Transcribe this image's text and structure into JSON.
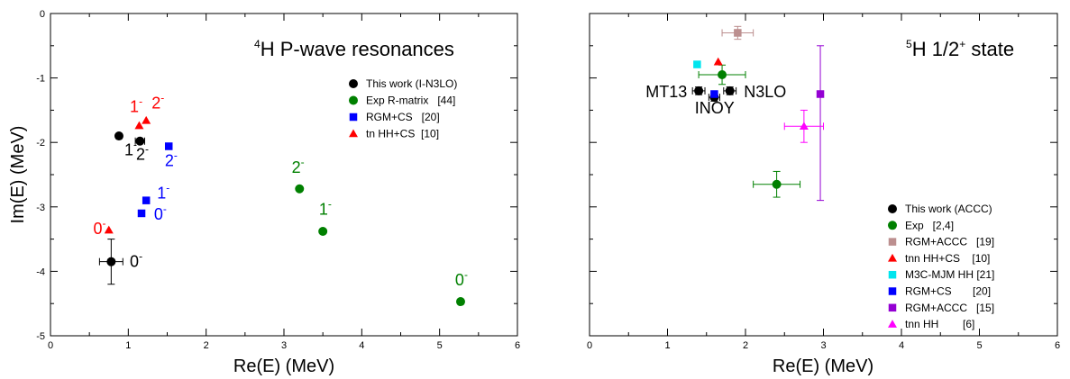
{
  "chart_data": [
    {
      "type": "scatter",
      "title_sup": "4",
      "title_main": "H P-wave resonances",
      "xlabel": "Re(E)  (MeV)",
      "ylabel": "Im(E)  (MeV)",
      "xlim": [
        0,
        6
      ],
      "ylim": [
        -5,
        0
      ],
      "xticks": [
        "0",
        "1",
        "2",
        "3",
        "4",
        "5",
        "6"
      ],
      "yticks": [
        "0",
        "-1",
        "-2",
        "-3",
        "-4",
        "-5"
      ],
      "grid": false,
      "legend_position": "top-right",
      "series": [
        {
          "name": "This work (I-N3LO)",
          "color": "#000000",
          "marker": "circle",
          "points": [
            {
              "x": 0.78,
              "y": -3.85,
              "xerr": 0.15,
              "yerr": 0.35
            },
            {
              "x": 0.88,
              "y": -1.9
            },
            {
              "x": 1.15,
              "y": -1.98,
              "xerr": 0.06
            }
          ]
        },
        {
          "name": "Exp R-matrix   [44]",
          "color": "#008000",
          "marker": "circle",
          "points": [
            {
              "x": 3.2,
              "y": -2.72
            },
            {
              "x": 3.5,
              "y": -3.38
            },
            {
              "x": 5.27,
              "y": -4.47
            }
          ]
        },
        {
          "name": "RGM+CS   [20]",
          "color": "#0000ff",
          "marker": "square",
          "points": [
            {
              "x": 1.52,
              "y": -2.06
            },
            {
              "x": 1.23,
              "y": -2.9
            },
            {
              "x": 1.17,
              "y": -3.1
            }
          ]
        },
        {
          "name": "tn HH+CS  [10]",
          "color": "#ff0000",
          "marker": "triangle",
          "points": [
            {
              "x": 1.14,
              "y": -1.74
            },
            {
              "x": 1.23,
              "y": -1.66
            },
            {
              "x": 0.75,
              "y": -3.36
            }
          ]
        }
      ],
      "annotations": [
        {
          "base": "1",
          "sup": "-",
          "color": "#000000",
          "x": 0.95,
          "y": -2.2
        },
        {
          "base": "2",
          "sup": "-",
          "color": "#000000",
          "x": 1.1,
          "y": -2.27
        },
        {
          "base": "0",
          "sup": "-",
          "color": "#000000",
          "x": 1.02,
          "y": -3.93
        },
        {
          "base": "1",
          "sup": "-",
          "color": "#ff0000",
          "x": 1.02,
          "y": -1.53
        },
        {
          "base": "2",
          "sup": "-",
          "color": "#ff0000",
          "x": 1.3,
          "y": -1.47
        },
        {
          "base": "0",
          "sup": "-",
          "color": "#ff0000",
          "x": 0.55,
          "y": -3.42
        },
        {
          "base": "1",
          "sup": "-",
          "color": "#0000ff",
          "x": 1.37,
          "y": -2.87
        },
        {
          "base": "0",
          "sup": "-",
          "color": "#0000ff",
          "x": 1.33,
          "y": -3.2
        },
        {
          "base": "2",
          "sup": "-",
          "color": "#0000ff",
          "x": 1.47,
          "y": -2.37
        },
        {
          "base": "2",
          "sup": "-",
          "color": "#008000",
          "x": 3.1,
          "y": -2.47
        },
        {
          "base": "1",
          "sup": "-",
          "color": "#008000",
          "x": 3.45,
          "y": -3.12
        },
        {
          "base": "0",
          "sup": "-",
          "color": "#008000",
          "x": 5.2,
          "y": -4.22
        }
      ]
    },
    {
      "type": "scatter",
      "title_sup": "5",
      "title_main": "H 1/2",
      "title_sup2": "+",
      "title_tail": " state",
      "xlabel": "Re(E)  (MeV)",
      "ylabel": "",
      "xlim": [
        0,
        6
      ],
      "ylim": [
        -5,
        0
      ],
      "xticks": [
        "0",
        "1",
        "2",
        "3",
        "4",
        "5",
        "6"
      ],
      "yticks": [],
      "grid": false,
      "legend_position": "bottom-right",
      "series": [
        {
          "name": "This work (ACCC)",
          "color": "#000000",
          "marker": "circle",
          "points": [
            {
              "x": 1.4,
              "y": -1.2,
              "xerr": 0.08,
              "yerr": 0.06
            },
            {
              "x": 1.6,
              "y": -1.3,
              "xerr": 0.07,
              "yerr": 0.06
            },
            {
              "x": 1.8,
              "y": -1.2,
              "xerr": 0.08,
              "yerr": 0.06
            }
          ]
        },
        {
          "name": "Exp   [2,4]",
          "color": "#008000",
          "marker": "circle",
          "points": [
            {
              "x": 1.7,
              "y": -0.95,
              "xerr": 0.3,
              "yerr": 0.15
            },
            {
              "x": 2.4,
              "y": -2.65,
              "xerr": 0.3,
              "yerr": 0.2
            }
          ]
        },
        {
          "name": "RGM+ACCC   [19]",
          "color": "#bc8f8f",
          "marker": "square",
          "points": [
            {
              "x": 1.9,
              "y": -0.3,
              "xerr": 0.2,
              "yerr": 0.1
            }
          ]
        },
        {
          "name": "tnn HH+CS    [10]",
          "color": "#ff0000",
          "marker": "triangle",
          "points": [
            {
              "x": 1.65,
              "y": -0.75
            }
          ]
        },
        {
          "name": "M3C-MJM HH [21]",
          "color": "#00e5ee",
          "marker": "square",
          "points": [
            {
              "x": 1.38,
              "y": -0.79
            }
          ]
        },
        {
          "name": "RGM+CS       [20]",
          "color": "#0000ff",
          "marker": "square",
          "points": [
            {
              "x": 1.6,
              "y": -1.25
            }
          ]
        },
        {
          "name": "RGM+ACCC   [15]",
          "color": "#9400d3",
          "marker": "square",
          "points": [
            {
              "x": 2.96,
              "y": -1.25,
              "yerr_up": 0.75,
              "yerr_down": 1.65
            }
          ]
        },
        {
          "name": "tnn HH        [6]",
          "color": "#ff00ff",
          "marker": "triangle",
          "points": [
            {
              "x": 2.75,
              "y": -1.75,
              "xerr": 0.25,
              "yerr": 0.25
            }
          ]
        }
      ],
      "annotations": [
        {
          "base": "MT13",
          "sup": "",
          "color": "#000000",
          "x": 0.72,
          "y": -1.3
        },
        {
          "base": "N3LO",
          "sup": "",
          "color": "#000000",
          "x": 1.98,
          "y": -1.3
        },
        {
          "base": "INOY",
          "sup": "",
          "color": "#000000",
          "x": 1.35,
          "y": -1.55
        }
      ]
    }
  ]
}
